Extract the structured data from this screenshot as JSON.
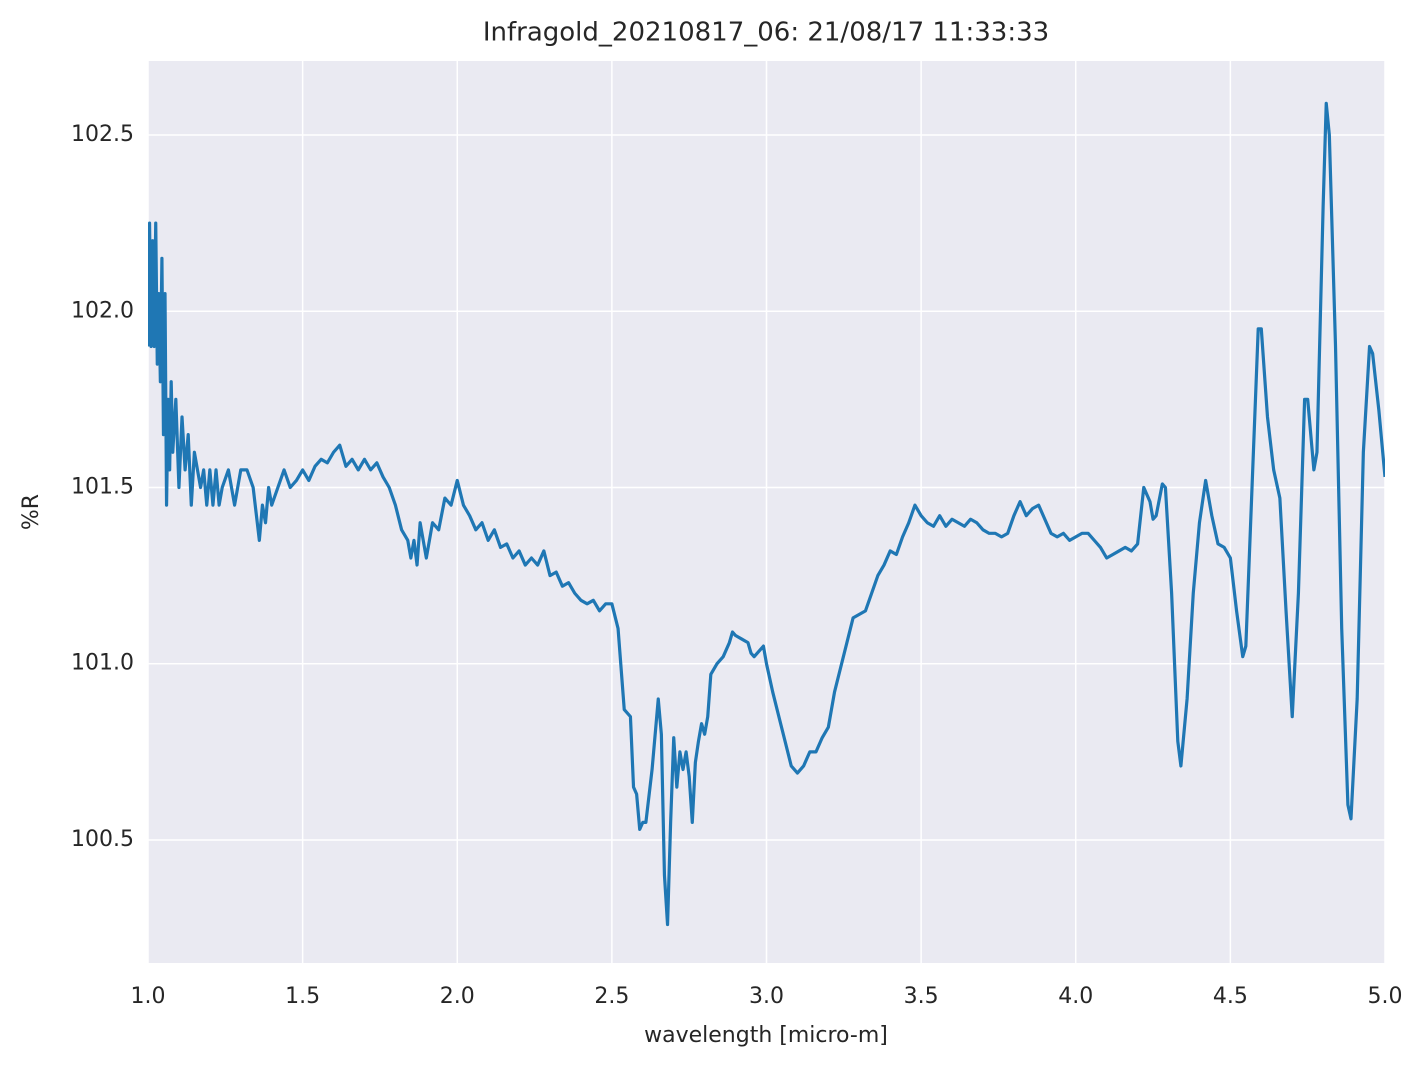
{
  "chart_data": {
    "type": "line",
    "title": "Infragold_20210817_06:  21/08/17 11:33:33",
    "xlabel": "wavelength [micro-m]",
    "ylabel": "%R",
    "x": [
      1.0,
      1.005,
      1.01,
      1.015,
      1.02,
      1.025,
      1.03,
      1.035,
      1.04,
      1.045,
      1.05,
      1.055,
      1.06,
      1.065,
      1.07,
      1.075,
      1.08,
      1.09,
      1.1,
      1.11,
      1.12,
      1.13,
      1.14,
      1.15,
      1.16,
      1.17,
      1.18,
      1.19,
      1.2,
      1.21,
      1.22,
      1.23,
      1.24,
      1.26,
      1.28,
      1.3,
      1.32,
      1.34,
      1.36,
      1.37,
      1.38,
      1.39,
      1.4,
      1.42,
      1.44,
      1.46,
      1.48,
      1.5,
      1.52,
      1.54,
      1.56,
      1.58,
      1.6,
      1.62,
      1.64,
      1.66,
      1.68,
      1.7,
      1.72,
      1.74,
      1.76,
      1.78,
      1.8,
      1.82,
      1.84,
      1.85,
      1.86,
      1.87,
      1.88,
      1.9,
      1.92,
      1.94,
      1.96,
      1.98,
      2.0,
      2.02,
      2.04,
      2.06,
      2.08,
      2.1,
      2.12,
      2.14,
      2.16,
      2.18,
      2.2,
      2.22,
      2.24,
      2.26,
      2.28,
      2.3,
      2.32,
      2.34,
      2.36,
      2.38,
      2.4,
      2.42,
      2.44,
      2.46,
      2.48,
      2.5,
      2.52,
      2.54,
      2.56,
      2.57,
      2.58,
      2.59,
      2.6,
      2.61,
      2.63,
      2.65,
      2.66,
      2.67,
      2.68,
      2.69,
      2.7,
      2.71,
      2.72,
      2.73,
      2.74,
      2.75,
      2.76,
      2.77,
      2.78,
      2.79,
      2.8,
      2.81,
      2.82,
      2.84,
      2.86,
      2.88,
      2.89,
      2.9,
      2.92,
      2.94,
      2.95,
      2.96,
      2.98,
      2.99,
      3.0,
      3.02,
      3.04,
      3.06,
      3.08,
      3.1,
      3.12,
      3.14,
      3.16,
      3.18,
      3.2,
      3.22,
      3.24,
      3.26,
      3.28,
      3.3,
      3.32,
      3.34,
      3.36,
      3.38,
      3.4,
      3.42,
      3.44,
      3.46,
      3.48,
      3.5,
      3.52,
      3.54,
      3.56,
      3.58,
      3.6,
      3.62,
      3.64,
      3.66,
      3.68,
      3.7,
      3.72,
      3.74,
      3.76,
      3.78,
      3.8,
      3.82,
      3.84,
      3.86,
      3.88,
      3.9,
      3.92,
      3.94,
      3.96,
      3.98,
      4.0,
      4.02,
      4.04,
      4.06,
      4.08,
      4.1,
      4.12,
      4.14,
      4.16,
      4.18,
      4.2,
      4.22,
      4.24,
      4.25,
      4.26,
      4.28,
      4.29,
      4.31,
      4.33,
      4.34,
      4.36,
      4.38,
      4.4,
      4.42,
      4.44,
      4.46,
      4.48,
      4.5,
      4.52,
      4.54,
      4.55,
      4.57,
      4.59,
      4.6,
      4.62,
      4.64,
      4.66,
      4.68,
      4.7,
      4.72,
      4.74,
      4.75,
      4.77,
      4.78,
      4.8,
      4.81,
      4.82,
      4.84,
      4.86,
      4.88,
      4.89,
      4.91,
      4.93,
      4.95,
      4.96,
      4.98,
      5.0
    ],
    "series": [
      {
        "name": "%R",
        "color": "#1f77b4",
        "values": [
          101.9,
          102.25,
          101.9,
          102.2,
          101.9,
          102.25,
          101.85,
          102.05,
          101.8,
          102.15,
          101.65,
          102.05,
          101.45,
          101.75,
          101.55,
          101.8,
          101.6,
          101.75,
          101.5,
          101.7,
          101.55,
          101.65,
          101.45,
          101.6,
          101.55,
          101.5,
          101.55,
          101.45,
          101.55,
          101.45,
          101.55,
          101.45,
          101.5,
          101.55,
          101.45,
          101.55,
          101.55,
          101.5,
          101.35,
          101.45,
          101.4,
          101.5,
          101.45,
          101.5,
          101.55,
          101.5,
          101.52,
          101.55,
          101.52,
          101.56,
          101.58,
          101.57,
          101.6,
          101.62,
          101.56,
          101.58,
          101.55,
          101.58,
          101.55,
          101.57,
          101.53,
          101.5,
          101.45,
          101.38,
          101.35,
          101.3,
          101.35,
          101.28,
          101.4,
          101.3,
          101.4,
          101.38,
          101.47,
          101.45,
          101.52,
          101.45,
          101.42,
          101.38,
          101.4,
          101.35,
          101.38,
          101.33,
          101.34,
          101.3,
          101.32,
          101.28,
          101.3,
          101.28,
          101.32,
          101.25,
          101.26,
          101.22,
          101.23,
          101.2,
          101.18,
          101.17,
          101.18,
          101.15,
          101.17,
          101.17,
          101.1,
          100.87,
          100.85,
          100.65,
          100.63,
          100.53,
          100.55,
          100.55,
          100.7,
          100.9,
          100.8,
          100.4,
          100.26,
          100.55,
          100.79,
          100.65,
          100.75,
          100.7,
          100.75,
          100.68,
          100.55,
          100.72,
          100.78,
          100.83,
          100.8,
          100.85,
          100.97,
          101.0,
          101.02,
          101.06,
          101.09,
          101.08,
          101.07,
          101.06,
          101.03,
          101.02,
          101.04,
          101.05,
          101.0,
          100.92,
          100.85,
          100.78,
          100.71,
          100.69,
          100.71,
          100.75,
          100.75,
          100.79,
          100.82,
          100.92,
          100.99,
          101.06,
          101.13,
          101.14,
          101.15,
          101.2,
          101.25,
          101.28,
          101.32,
          101.31,
          101.36,
          101.4,
          101.45,
          101.42,
          101.4,
          101.39,
          101.42,
          101.39,
          101.41,
          101.4,
          101.39,
          101.41,
          101.4,
          101.38,
          101.37,
          101.37,
          101.36,
          101.37,
          101.42,
          101.46,
          101.42,
          101.44,
          101.45,
          101.41,
          101.37,
          101.36,
          101.37,
          101.35,
          101.36,
          101.37,
          101.37,
          101.35,
          101.33,
          101.3,
          101.31,
          101.32,
          101.33,
          101.32,
          101.34,
          101.5,
          101.46,
          101.41,
          101.42,
          101.51,
          101.5,
          101.2,
          100.78,
          100.71,
          100.9,
          101.2,
          101.4,
          101.52,
          101.42,
          101.34,
          101.33,
          101.3,
          101.15,
          101.02,
          101.05,
          101.5,
          101.95,
          101.95,
          101.7,
          101.55,
          101.47,
          101.15,
          100.85,
          101.2,
          101.75,
          101.75,
          101.55,
          101.6,
          102.3,
          102.59,
          102.5,
          101.9,
          101.1,
          100.6,
          100.56,
          100.9,
          101.6,
          101.9,
          101.88,
          101.72,
          101.53
        ]
      }
    ],
    "xlim": [
      1,
      5
    ],
    "xticks": [
      {
        "value": 1,
        "label": "1.0"
      },
      1.5,
      {
        "value": 2,
        "label": "2.0"
      },
      2.5,
      {
        "value": 3,
        "label": "3.0"
      },
      3.5,
      {
        "value": 4,
        "label": "4.0"
      },
      4.5,
      {
        "value": 5,
        "label": "5.0"
      }
    ],
    "ylim": [
      100.151,
      102.71
    ],
    "yticks": [
      100.5,
      {
        "value": 101,
        "label": "101.0"
      },
      101.5,
      {
        "value": 102,
        "label": "102.0"
      },
      102.5
    ],
    "grid": true
  }
}
